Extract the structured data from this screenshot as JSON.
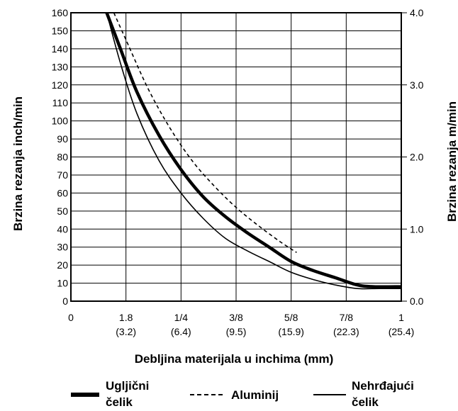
{
  "chart_data": {
    "type": "line",
    "xlabel": "Debljina materijala u inchima (mm)",
    "ylabel": "Brzina rezanja inch/min",
    "ylabel_right": "Brzina rezanja m/min",
    "ylim": [
      0,
      160
    ],
    "ylim_right": [
      0.0,
      4.0
    ],
    "x_ticks": [
      {
        "x": 0,
        "label": "0",
        "sub": ""
      },
      {
        "x": 1,
        "label": "1.8",
        "sub": "(3.2)"
      },
      {
        "x": 2,
        "label": "1/4",
        "sub": "(6.4)"
      },
      {
        "x": 3,
        "label": "3/8",
        "sub": "(9.5)"
      },
      {
        "x": 4,
        "label": "5/8",
        "sub": "(15.9)"
      },
      {
        "x": 5,
        "label": "7/8",
        "sub": "(22.3)"
      },
      {
        "x": 6,
        "label": "1",
        "sub": "(25.4)"
      }
    ],
    "xlim": [
      0,
      6
    ],
    "y_ticks": [
      0,
      10,
      20,
      30,
      40,
      50,
      60,
      70,
      80,
      90,
      100,
      110,
      120,
      130,
      140,
      150,
      160
    ],
    "y_ticks_right": [
      {
        "value": 0.0,
        "label": "0.0"
      },
      {
        "value": 1.0,
        "label": "1.0"
      },
      {
        "value": 2.0,
        "label": "2.0"
      },
      {
        "value": 3.0,
        "label": "3.0"
      },
      {
        "value": 4.0,
        "label": "4.0"
      }
    ],
    "grid": true,
    "legend_position": "bottom",
    "series": [
      {
        "name": "Ugljični čelik",
        "style": "thick",
        "x": [
          0.65,
          0.9,
          1.2,
          1.6,
          2.0,
          2.4,
          2.8,
          3.2,
          3.6,
          4.0,
          4.4,
          4.8,
          5.2,
          5.5,
          6.0
        ],
        "y": [
          160,
          140,
          116,
          92,
          73,
          58,
          47,
          38,
          30,
          22,
          17,
          13,
          9,
          8,
          8
        ]
      },
      {
        "name": "Aluminij",
        "style": "dashed",
        "x": [
          0.78,
          1.0,
          1.4,
          1.8,
          2.2,
          2.6,
          3.0,
          3.4,
          3.8,
          4.1
        ],
        "y": [
          160,
          145,
          118,
          96,
          78,
          64,
          52,
          42,
          33,
          27
        ]
      },
      {
        "name": "Nehrđajući čelik",
        "style": "thin",
        "x": [
          0.65,
          0.9,
          1.2,
          1.6,
          2.0,
          2.4,
          2.8,
          3.2,
          3.6,
          4.0,
          4.4,
          4.8,
          5.2,
          5.6,
          6.0
        ],
        "y": [
          160,
          132,
          104,
          78,
          60,
          46,
          35,
          28,
          22,
          16,
          12,
          9,
          7,
          7,
          7
        ]
      }
    ],
    "legend": [
      {
        "line1": "Ugljični",
        "line2": "čelik"
      },
      {
        "line1": "Aluminij",
        "line2": ""
      },
      {
        "line1": "Nehrđajući",
        "line2": "čelik"
      }
    ]
  }
}
